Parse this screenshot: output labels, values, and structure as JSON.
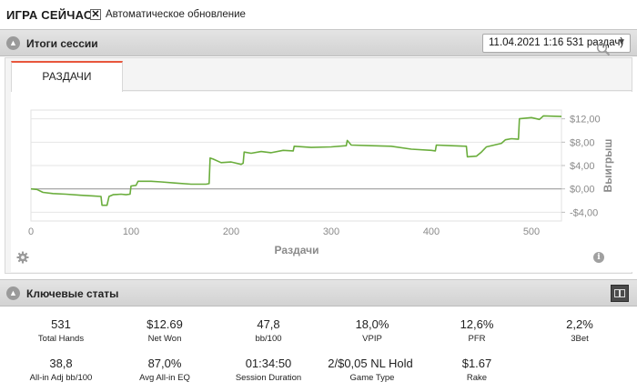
{
  "header": {
    "title": "ИГРА СЕЙЧАС",
    "auto_update_checked": true,
    "auto_update_mark": "✕",
    "auto_update_label": "Автоматическое обновление"
  },
  "session": {
    "title": "Итоги сессии",
    "selected": "11.04.2021 1:16 531 раздач)",
    "tab_label": "РАЗДАЧИ"
  },
  "chart_data": {
    "type": "line",
    "xlabel": "Раздачи",
    "ylabel": "Выигрыш",
    "xlim": [
      0,
      530
    ],
    "ylim": [
      -5.5,
      13.5
    ],
    "x_ticks": [
      0,
      100,
      200,
      300,
      400,
      500
    ],
    "y_ticks": [
      -4,
      0,
      4,
      8,
      12
    ],
    "y_tick_labels": [
      "-$4,00",
      "$0,00",
      "$4,00",
      "$8,00",
      "$12,00"
    ],
    "x_tick_labels": [
      "0",
      "100",
      "200",
      "300",
      "400",
      "500"
    ],
    "line_color": "#6aad3c",
    "grid": true,
    "series": [
      {
        "values": [
          [
            0,
            0.0
          ],
          [
            6,
            -0.1
          ],
          [
            12,
            -0.6
          ],
          [
            22,
            -0.8
          ],
          [
            35,
            -0.9
          ],
          [
            50,
            -1.1
          ],
          [
            62,
            -1.2
          ],
          [
            70,
            -1.3
          ],
          [
            71,
            -2.8
          ],
          [
            76,
            -2.8
          ],
          [
            78,
            -1.3
          ],
          [
            82,
            -1.0
          ],
          [
            90,
            -0.9
          ],
          [
            95,
            -1.0
          ],
          [
            99,
            -0.9
          ],
          [
            100,
            0.5
          ],
          [
            105,
            0.6
          ],
          [
            107,
            1.3
          ],
          [
            120,
            1.3
          ],
          [
            130,
            1.2
          ],
          [
            145,
            1.0
          ],
          [
            160,
            0.8
          ],
          [
            175,
            0.8
          ],
          [
            178,
            0.9
          ],
          [
            179,
            5.3
          ],
          [
            182,
            5.1
          ],
          [
            190,
            4.5
          ],
          [
            200,
            4.6
          ],
          [
            210,
            4.2
          ],
          [
            212,
            4.4
          ],
          [
            213,
            6.3
          ],
          [
            220,
            6.1
          ],
          [
            230,
            6.4
          ],
          [
            240,
            6.2
          ],
          [
            252,
            6.6
          ],
          [
            262,
            6.5
          ],
          [
            263,
            7.3
          ],
          [
            280,
            7.1
          ],
          [
            300,
            7.2
          ],
          [
            315,
            7.4
          ],
          [
            316,
            8.3
          ],
          [
            320,
            7.5
          ],
          [
            340,
            7.4
          ],
          [
            360,
            7.3
          ],
          [
            380,
            6.8
          ],
          [
            400,
            6.6
          ],
          [
            404,
            6.5
          ],
          [
            405,
            7.5
          ],
          [
            420,
            7.4
          ],
          [
            435,
            7.3
          ],
          [
            436,
            5.5
          ],
          [
            445,
            5.6
          ],
          [
            450,
            6.3
          ],
          [
            455,
            7.2
          ],
          [
            470,
            7.8
          ],
          [
            474,
            8.4
          ],
          [
            480,
            8.6
          ],
          [
            487,
            8.5
          ],
          [
            488,
            12.0
          ],
          [
            500,
            12.2
          ],
          [
            508,
            11.9
          ],
          [
            512,
            12.5
          ],
          [
            530,
            12.4
          ]
        ]
      }
    ]
  },
  "key_stats": {
    "title": "Ключевые статы",
    "items": [
      {
        "value": "531",
        "label": "Total Hands"
      },
      {
        "value": "$12.69",
        "label": "Net Won"
      },
      {
        "value": "47,8",
        "label": "bb/100"
      },
      {
        "value": "18,0%",
        "label": "VPIP"
      },
      {
        "value": "12,6%",
        "label": "PFR"
      },
      {
        "value": "2,2%",
        "label": "3Bet"
      },
      {
        "value": "38,8",
        "label": "All-in Adj bb/100"
      },
      {
        "value": "87,0%",
        "label": "Avg All-in EQ"
      },
      {
        "value": "01:34:50",
        "label": "Session Duration"
      },
      {
        "value": "2/$0,05 NL Hold",
        "label": "Game Type"
      },
      {
        "value": "$1.67",
        "label": "Rake"
      }
    ]
  },
  "icons": {
    "collapse": "chevron-up-icon",
    "zoom": "magnifier-icon",
    "settings": "gear-icon",
    "info": "info-icon",
    "layout": "layout-toggle-icon",
    "info_glyph": "i",
    "collapse_glyph": "▲",
    "dropdown_glyph": "▼"
  }
}
